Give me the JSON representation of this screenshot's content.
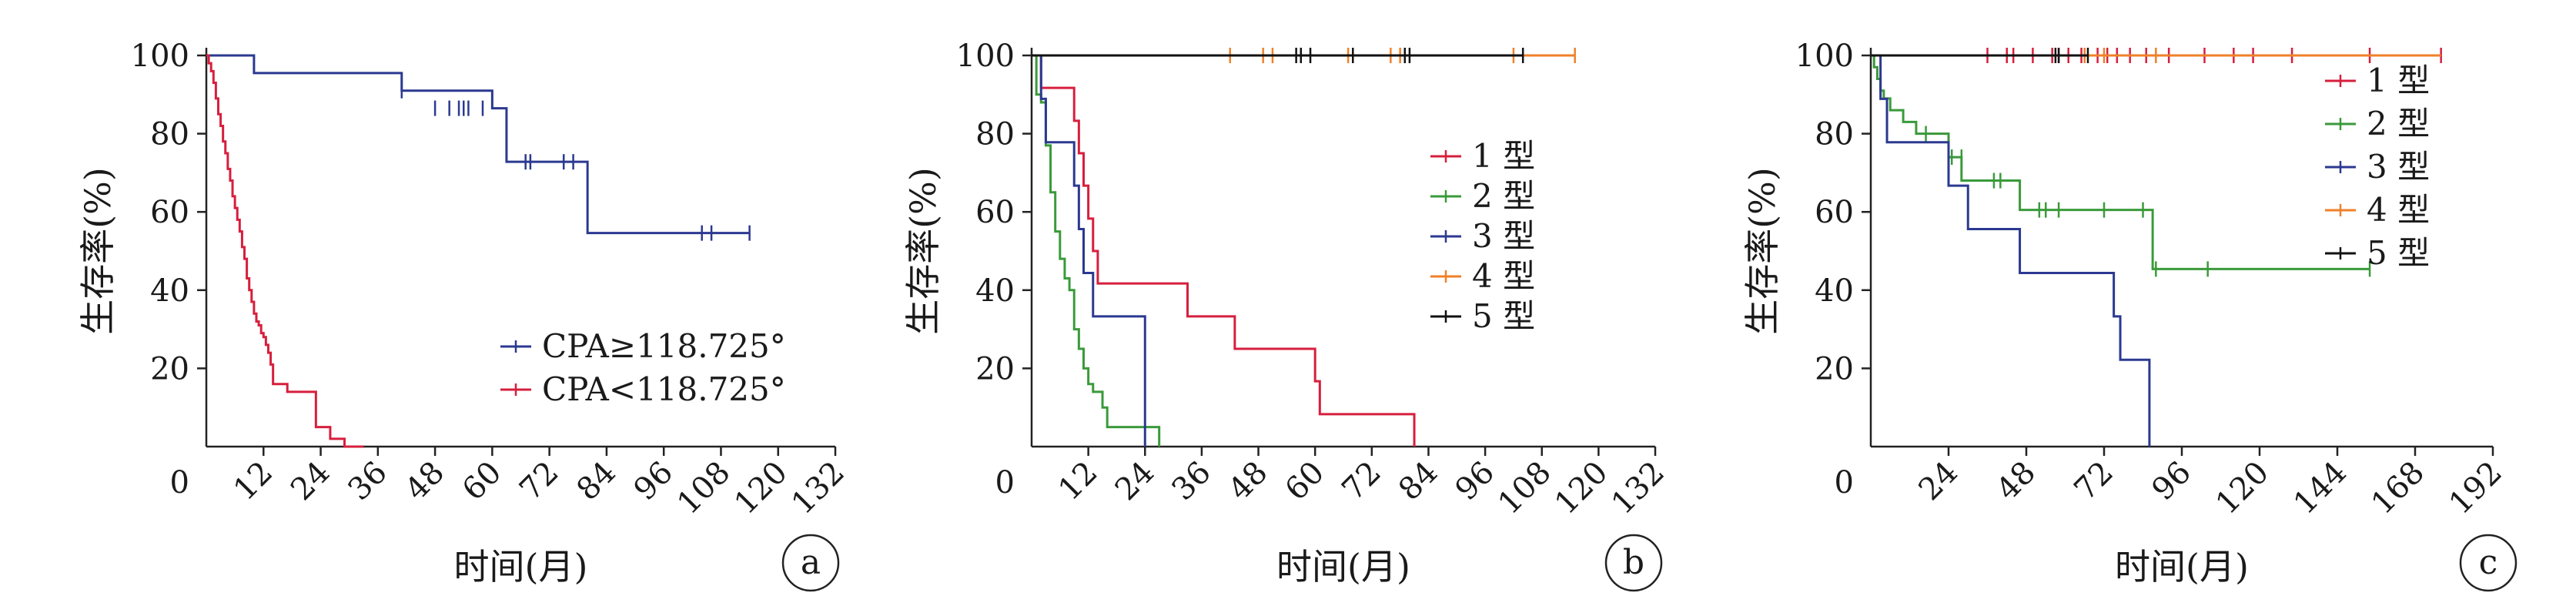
{
  "chart_data": [
    {
      "type": "line",
      "panel_label": "a",
      "xlabel": "时间(月)",
      "ylabel": "生存率(%)",
      "x_ticks": [
        0,
        12,
        24,
        36,
        48,
        60,
        72,
        84,
        96,
        108,
        120,
        132
      ],
      "y_ticks": [
        0,
        20,
        40,
        60,
        80,
        100
      ],
      "xlim": [
        0,
        132
      ],
      "ylim": [
        0,
        100
      ],
      "legend_position": "center-right",
      "series": [
        {
          "name": "CPA≥118.725°",
          "color": "#2b3990",
          "x": [
            0,
            8,
            10,
            41,
            60,
            63,
            80,
            114
          ],
          "y": [
            100,
            100,
            95.5,
            91,
            86.5,
            72.8,
            54.6,
            54.6
          ],
          "censored": [
            [
              41,
              91
            ],
            [
              48,
              86.5
            ],
            [
              51,
              86.5
            ],
            [
              53,
              86.5
            ],
            [
              54,
              86.5
            ],
            [
              55,
              86.5
            ],
            [
              58,
              86.5
            ],
            [
              67,
              72.8
            ],
            [
              68,
              72.8
            ],
            [
              75,
              72.8
            ],
            [
              77,
              72.8
            ],
            [
              104,
              54.6
            ],
            [
              106,
              54.6
            ],
            [
              114,
              54.6
            ]
          ]
        },
        {
          "name": "CPA<118.725°",
          "color": "#d61f3d",
          "x": [
            0,
            0.5,
            1,
            1.5,
            2,
            2.5,
            3,
            3.5,
            4,
            4.5,
            5,
            5.5,
            6,
            6.5,
            7,
            7.5,
            8,
            8.5,
            9,
            9.5,
            10,
            10.5,
            11,
            11.5,
            12,
            12.5,
            13,
            13.5,
            14,
            17,
            23,
            26,
            29,
            33
          ],
          "y": [
            100,
            98,
            96,
            93,
            89,
            85,
            82,
            78,
            75,
            71,
            68,
            64,
            61,
            58,
            55,
            51,
            48,
            43,
            40,
            37,
            34,
            32,
            31,
            29,
            28,
            26,
            24,
            21,
            16,
            14,
            5,
            2,
            0,
            0
          ]
        }
      ]
    },
    {
      "type": "line",
      "panel_label": "b",
      "xlabel": "时间(月)",
      "ylabel": "生存率(%)",
      "x_ticks": [
        0,
        12,
        24,
        36,
        48,
        60,
        72,
        84,
        96,
        108,
        120,
        132
      ],
      "y_ticks": [
        0,
        20,
        40,
        60,
        80,
        100
      ],
      "xlim": [
        0,
        132
      ],
      "ylim": [
        0,
        100
      ],
      "legend_position": "right",
      "series": [
        {
          "name": "1 型",
          "color": "#d61f3d",
          "x": [
            0,
            1,
            2,
            9,
            10,
            11,
            12,
            13,
            14,
            33,
            43,
            60,
            61,
            63,
            81
          ],
          "y": [
            100,
            100,
            91.7,
            83.3,
            75,
            66.7,
            58.3,
            50,
            41.7,
            33.3,
            25,
            16.7,
            8.3,
            8.3,
            0
          ]
        },
        {
          "name": "2 型",
          "color": "#3a9a3a",
          "x": [
            0,
            1,
            2,
            3,
            4,
            5,
            6,
            7,
            8,
            9,
            10,
            11,
            12,
            13,
            15,
            16,
            19,
            27
          ],
          "y": [
            100,
            90,
            88,
            77,
            65,
            55,
            48,
            43,
            40,
            30,
            25,
            20,
            16,
            14,
            10,
            5,
            5,
            0
          ]
        },
        {
          "name": "3 型",
          "color": "#2b3990",
          "x": [
            0,
            1,
            2,
            3,
            7,
            9,
            10,
            11,
            12,
            13,
            23,
            24
          ],
          "y": [
            100,
            100,
            88.9,
            77.8,
            77.8,
            66.7,
            55.6,
            44.4,
            44.4,
            33.3,
            33.3,
            0
          ]
        },
        {
          "name": "4 型",
          "color": "#f0802a",
          "x": [
            0,
            115
          ],
          "y": [
            100,
            100
          ],
          "censored": [
            [
              42,
              100
            ],
            [
              49,
              100
            ],
            [
              51,
              100
            ],
            [
              67,
              100
            ],
            [
              76,
              100
            ],
            [
              78,
              100
            ],
            [
              102,
              100
            ],
            [
              115,
              100
            ]
          ]
        },
        {
          "name": "5 型",
          "color": "#111111",
          "x": [
            0,
            104
          ],
          "y": [
            100,
            100
          ],
          "censored": [
            [
              56,
              100
            ],
            [
              57,
              100
            ],
            [
              59,
              100
            ],
            [
              68,
              100
            ],
            [
              79,
              100
            ],
            [
              80,
              100
            ],
            [
              104,
              100
            ]
          ]
        }
      ]
    },
    {
      "type": "line",
      "panel_label": "c",
      "xlabel": "时间(月)",
      "ylabel": "生存率(%)",
      "x_ticks": [
        0,
        24,
        48,
        72,
        96,
        120,
        144,
        168,
        192
      ],
      "y_ticks": [
        0,
        20,
        40,
        60,
        80,
        100
      ],
      "xlim": [
        0,
        192
      ],
      "ylim": [
        0,
        100
      ],
      "legend_position": "top-right",
      "series": [
        {
          "name": "1 型",
          "color": "#d61f3d",
          "x": [
            0,
            176
          ],
          "y": [
            100,
            100
          ],
          "censored": [
            [
              36,
              100
            ],
            [
              42,
              100
            ],
            [
              44,
              100
            ],
            [
              50,
              100
            ],
            [
              56,
              100
            ],
            [
              58,
              100
            ],
            [
              61,
              100
            ],
            [
              65,
              100
            ],
            [
              70,
              100
            ],
            [
              73,
              100
            ],
            [
              76,
              100
            ],
            [
              80,
              100
            ],
            [
              85,
              100
            ],
            [
              92,
              100
            ],
            [
              103,
              100
            ],
            [
              112,
              100
            ],
            [
              118,
              100
            ],
            [
              130,
              100
            ],
            [
              154,
              100
            ],
            [
              176,
              100
            ]
          ]
        },
        {
          "name": "2 型",
          "color": "#3a9a3a",
          "x": [
            0,
            1,
            2,
            3,
            4,
            6,
            10,
            14,
            24,
            28,
            42,
            46,
            86,
            87,
            154
          ],
          "y": [
            100,
            97,
            94,
            91,
            89,
            86,
            83,
            80,
            74,
            68,
            68,
            60.5,
            60.5,
            45.4,
            45.4
          ],
          "censored": [
            [
              17,
              80
            ],
            [
              25,
              74
            ],
            [
              28,
              74
            ],
            [
              38,
              68
            ],
            [
              40,
              68
            ],
            [
              52,
              60.5
            ],
            [
              54,
              60.5
            ],
            [
              58,
              60.5
            ],
            [
              72,
              60.5
            ],
            [
              84,
              60.5
            ],
            [
              88,
              45.4
            ],
            [
              104,
              45.4
            ],
            [
              154,
              45.4
            ]
          ]
        },
        {
          "name": "3 型",
          "color": "#2b3990",
          "x": [
            0,
            2,
            3,
            5,
            24,
            30,
            46,
            75,
            77,
            80,
            86
          ],
          "y": [
            100,
            100,
            88.9,
            77.8,
            66.7,
            55.6,
            44.4,
            33.3,
            22.2,
            22.2,
            0
          ]
        },
        {
          "name": "4 型",
          "color": "#f0802a",
          "x": [
            0,
            176
          ],
          "y": [
            100,
            100
          ],
          "censored": [
            [
              66,
              100
            ],
            [
              72,
              100
            ],
            [
              88,
              100
            ]
          ]
        },
        {
          "name": "5 型",
          "color": "#111111",
          "x": [
            0,
            67
          ],
          "y": [
            100,
            100
          ],
          "censored": [
            [
              57,
              100
            ],
            [
              58,
              100
            ],
            [
              67,
              100
            ]
          ]
        }
      ]
    }
  ]
}
